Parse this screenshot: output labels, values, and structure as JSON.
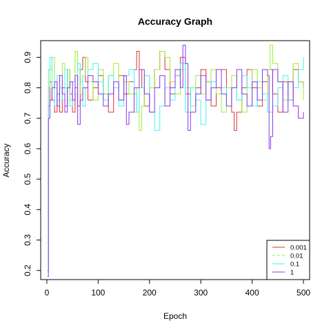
{
  "chart_data": {
    "type": "line",
    "title": "Accuracy Graph",
    "xlabel": "Epoch",
    "ylabel": "Accuracy",
    "xlim": [
      -12,
      512
    ],
    "ylim": [
      0.17,
      0.955
    ],
    "xticks": [
      0,
      100,
      200,
      300,
      400,
      500
    ],
    "yticks": [
      0.2,
      0.3,
      0.4,
      0.5,
      0.6,
      0.7,
      0.8,
      0.9
    ],
    "xtick_labels": [
      "0",
      "100",
      "200",
      "300",
      "400",
      "500"
    ],
    "ytick_labels": [
      "0.2",
      "0.3",
      "0.4",
      "0.5",
      "0.6",
      "0.7",
      "0.8",
      "0.9"
    ],
    "grid": false,
    "legend_position": "bottom-right",
    "series": [
      {
        "name": "0.001",
        "color": "#e03030",
        "dash": "solid",
        "x": [
          1,
          3,
          6,
          10,
          15,
          20,
          25,
          30,
          35,
          40,
          45,
          50,
          55,
          60,
          65,
          70,
          75,
          80,
          90,
          100,
          110,
          120,
          130,
          140,
          150,
          160,
          170,
          175,
          180,
          185,
          190,
          200,
          210,
          220,
          230,
          240,
          250,
          260,
          270,
          280,
          290,
          300,
          310,
          320,
          330,
          340,
          350,
          360,
          365,
          370,
          380,
          390,
          400,
          410,
          420,
          430,
          440,
          450,
          460,
          470,
          480,
          490,
          500
        ],
        "y": [
          0.2,
          0.74,
          0.82,
          0.76,
          0.72,
          0.78,
          0.72,
          0.8,
          0.74,
          0.86,
          0.78,
          0.72,
          0.8,
          0.74,
          0.86,
          0.9,
          0.82,
          0.76,
          0.8,
          0.84,
          0.78,
          0.72,
          0.8,
          0.84,
          0.78,
          0.82,
          0.86,
          0.92,
          0.86,
          0.8,
          0.74,
          0.8,
          0.86,
          0.92,
          0.86,
          0.78,
          0.84,
          0.9,
          0.78,
          0.74,
          0.8,
          0.86,
          0.82,
          0.74,
          0.8,
          0.86,
          0.8,
          0.72,
          0.66,
          0.72,
          0.8,
          0.86,
          0.8,
          0.74,
          0.82,
          0.86,
          0.78,
          0.72,
          0.82,
          0.76,
          0.86,
          0.82,
          0.8
        ]
      },
      {
        "name": "0.01",
        "color": "#99ee33",
        "dash": "dashed",
        "x": [
          1,
          3,
          6,
          10,
          15,
          20,
          25,
          30,
          35,
          40,
          45,
          50,
          55,
          60,
          65,
          70,
          75,
          80,
          90,
          100,
          110,
          120,
          130,
          140,
          150,
          160,
          170,
          175,
          180,
          185,
          190,
          200,
          210,
          220,
          230,
          240,
          250,
          260,
          270,
          280,
          290,
          300,
          310,
          320,
          330,
          340,
          350,
          360,
          370,
          380,
          390,
          400,
          410,
          420,
          430,
          435,
          440,
          450,
          460,
          470,
          480,
          490,
          500
        ],
        "y": [
          0.2,
          0.8,
          0.86,
          0.9,
          0.8,
          0.76,
          0.84,
          0.88,
          0.8,
          0.86,
          0.76,
          0.82,
          0.92,
          0.86,
          0.78,
          0.84,
          0.9,
          0.82,
          0.76,
          0.86,
          0.78,
          0.84,
          0.88,
          0.76,
          0.82,
          0.78,
          0.72,
          0.8,
          0.66,
          0.74,
          0.84,
          0.8,
          0.86,
          0.92,
          0.9,
          0.82,
          0.78,
          0.86,
          0.8,
          0.74,
          0.84,
          0.78,
          0.82,
          0.86,
          0.78,
          0.72,
          0.8,
          0.84,
          0.76,
          0.72,
          0.8,
          0.86,
          0.8,
          0.76,
          0.86,
          0.94,
          0.88,
          0.82,
          0.76,
          0.82,
          0.88,
          0.82,
          0.76
        ]
      },
      {
        "name": "0.1",
        "color": "#44f0f0",
        "dash": "solid",
        "x": [
          1,
          3,
          6,
          10,
          15,
          20,
          25,
          30,
          35,
          40,
          45,
          50,
          55,
          60,
          65,
          70,
          75,
          80,
          90,
          100,
          110,
          120,
          130,
          140,
          150,
          160,
          170,
          175,
          180,
          190,
          200,
          210,
          220,
          230,
          240,
          250,
          260,
          270,
          280,
          290,
          300,
          310,
          320,
          330,
          340,
          350,
          360,
          370,
          380,
          390,
          400,
          410,
          420,
          430,
          440,
          450,
          460,
          470,
          480,
          490,
          500
        ],
        "y": [
          0.2,
          0.86,
          0.9,
          0.8,
          0.74,
          0.84,
          0.8,
          0.76,
          0.86,
          0.8,
          0.74,
          0.82,
          0.78,
          0.88,
          0.82,
          0.74,
          0.8,
          0.86,
          0.88,
          0.82,
          0.76,
          0.84,
          0.8,
          0.74,
          0.84,
          0.86,
          0.78,
          0.72,
          0.8,
          0.84,
          0.72,
          0.66,
          0.74,
          0.8,
          0.76,
          0.84,
          0.88,
          0.72,
          0.8,
          0.76,
          0.68,
          0.76,
          0.82,
          0.86,
          0.8,
          0.74,
          0.8,
          0.76,
          0.84,
          0.8,
          0.74,
          0.82,
          0.78,
          0.72,
          0.74,
          0.8,
          0.84,
          0.76,
          0.8,
          0.86,
          0.9
        ]
      },
      {
        "name": "1",
        "color": "#8833ee",
        "dash": "solid",
        "x": [
          1,
          3,
          6,
          10,
          15,
          20,
          25,
          30,
          35,
          40,
          45,
          50,
          55,
          60,
          65,
          70,
          80,
          90,
          100,
          110,
          120,
          130,
          140,
          150,
          155,
          160,
          170,
          180,
          190,
          200,
          210,
          220,
          230,
          240,
          250,
          260,
          265,
          270,
          275,
          280,
          290,
          300,
          310,
          320,
          330,
          340,
          350,
          360,
          370,
          380,
          390,
          400,
          410,
          420,
          430,
          433,
          436,
          440,
          450,
          460,
          470,
          480,
          490,
          500
        ],
        "y": [
          0.18,
          0.7,
          0.76,
          0.8,
          0.82,
          0.74,
          0.84,
          0.78,
          0.72,
          0.8,
          0.82,
          0.76,
          0.84,
          0.68,
          0.76,
          0.8,
          0.84,
          0.82,
          0.78,
          0.74,
          0.78,
          0.82,
          0.76,
          0.84,
          0.68,
          0.72,
          0.8,
          0.86,
          0.78,
          0.72,
          0.8,
          0.84,
          0.74,
          0.8,
          0.86,
          0.8,
          0.94,
          0.88,
          0.66,
          0.72,
          0.78,
          0.84,
          0.76,
          0.8,
          0.86,
          0.78,
          0.74,
          0.8,
          0.86,
          0.78,
          0.74,
          0.82,
          0.76,
          0.86,
          0.84,
          0.6,
          0.64,
          0.86,
          0.82,
          0.72,
          0.82,
          0.74,
          0.7,
          0.72
        ]
      }
    ]
  }
}
